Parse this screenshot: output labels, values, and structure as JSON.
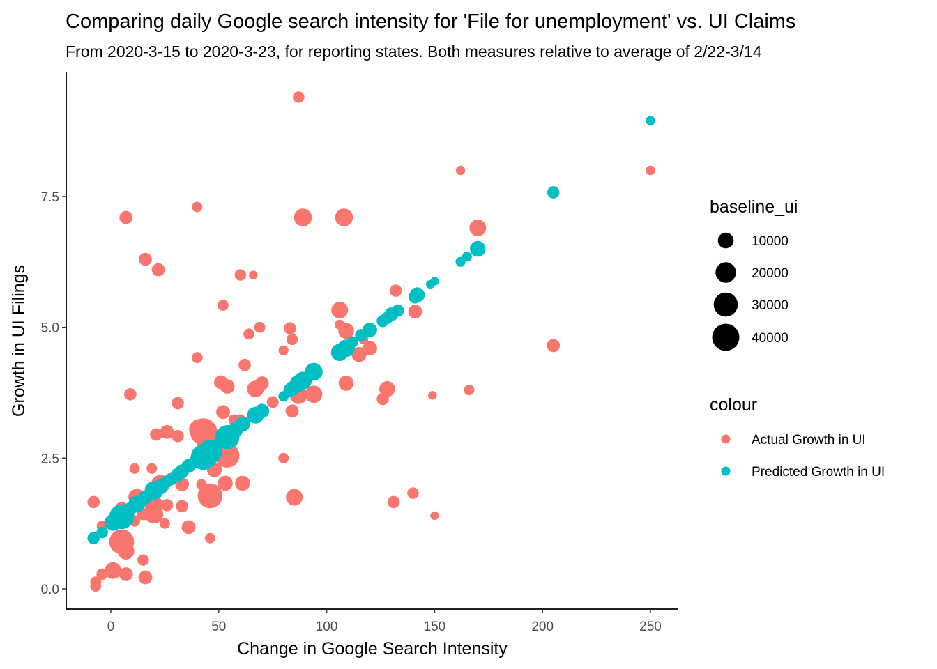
{
  "chart_data": {
    "type": "scatter",
    "title": "Comparing daily Google search intensity for 'File for unemployment' vs. UI Claims",
    "subtitle": "From 2020-3-15 to 2020-3-23, for reporting states. Both measures relative to average of 2/22-3/14",
    "xlabel": "Change in Google Search Intensity",
    "ylabel": "Growth in UI Filings",
    "xlim": [
      -10,
      260
    ],
    "ylim": [
      -0.4,
      9.9
    ],
    "x_ticks": [
      0,
      50,
      100,
      150,
      200,
      250
    ],
    "y_ticks": [
      0.0,
      2.5,
      5.0,
      7.5
    ],
    "x_tick_labels": [
      "0",
      "50",
      "100",
      "150",
      "200",
      "250"
    ],
    "y_tick_labels": [
      "0.0",
      "2.5",
      "5.0",
      "7.5"
    ],
    "grid": false,
    "legend_placement": "right",
    "size_legend": {
      "title": "baseline_ui",
      "values": [
        10000,
        20000,
        30000,
        40000
      ],
      "labels": [
        "10000",
        "20000",
        "30000",
        "40000"
      ]
    },
    "colour_legend": {
      "title": "colour",
      "entries": [
        "Actual Growth in UI",
        "Predicted Growth in UI"
      ]
    },
    "colors": {
      "Actual Growth in UI": "#F8766D",
      "Predicted Growth in UI": "#00BFC4"
    },
    "series": [
      {
        "name": "Actual Growth in UI",
        "points": [
          {
            "x": 87,
            "y": 9.4,
            "baseline_ui": 4000
          },
          {
            "x": 162,
            "y": 8.0,
            "baseline_ui": 2000
          },
          {
            "x": 250,
            "y": 8.0,
            "baseline_ui": 2000
          },
          {
            "x": 40,
            "y": 7.3,
            "baseline_ui": 3000
          },
          {
            "x": 7,
            "y": 7.1,
            "baseline_ui": 6000
          },
          {
            "x": 89,
            "y": 7.1,
            "baseline_ui": 14000
          },
          {
            "x": 108,
            "y": 7.1,
            "baseline_ui": 14000
          },
          {
            "x": 170,
            "y": 6.9,
            "baseline_ui": 12000
          },
          {
            "x": 16,
            "y": 6.3,
            "baseline_ui": 6000
          },
          {
            "x": 22,
            "y": 6.1,
            "baseline_ui": 6000
          },
          {
            "x": 60,
            "y": 6.0,
            "baseline_ui": 4000
          },
          {
            "x": 66,
            "y": 6.0,
            "baseline_ui": 1500
          },
          {
            "x": 132,
            "y": 5.7,
            "baseline_ui": 5000
          },
          {
            "x": 52,
            "y": 5.42,
            "baseline_ui": 3500
          },
          {
            "x": 106,
            "y": 5.33,
            "baseline_ui": 12000
          },
          {
            "x": 141,
            "y": 5.3,
            "baseline_ui": 7000
          },
          {
            "x": 106,
            "y": 5.05,
            "baseline_ui": 2500
          },
          {
            "x": 69,
            "y": 5.0,
            "baseline_ui": 3500
          },
          {
            "x": 83,
            "y": 4.98,
            "baseline_ui": 5000
          },
          {
            "x": 109,
            "y": 4.93,
            "baseline_ui": 10000
          },
          {
            "x": 64,
            "y": 4.87,
            "baseline_ui": 3500
          },
          {
            "x": 84,
            "y": 4.77,
            "baseline_ui": 4000
          },
          {
            "x": 117,
            "y": 4.77,
            "baseline_ui": 2500
          },
          {
            "x": 205,
            "y": 4.65,
            "baseline_ui": 6000
          },
          {
            "x": 120,
            "y": 4.6,
            "baseline_ui": 8000
          },
          {
            "x": 80,
            "y": 4.56,
            "baseline_ui": 2500
          },
          {
            "x": 115,
            "y": 4.48,
            "baseline_ui": 9000
          },
          {
            "x": 40,
            "y": 4.42,
            "baseline_ui": 3500
          },
          {
            "x": 62,
            "y": 4.28,
            "baseline_ui": 5000
          },
          {
            "x": 51,
            "y": 3.95,
            "baseline_ui": 7000
          },
          {
            "x": 70,
            "y": 3.93,
            "baseline_ui": 7000
          },
          {
            "x": 109,
            "y": 3.93,
            "baseline_ui": 9000
          },
          {
            "x": 54,
            "y": 3.87,
            "baseline_ui": 8000
          },
          {
            "x": 67,
            "y": 3.82,
            "baseline_ui": 12000
          },
          {
            "x": 128,
            "y": 3.82,
            "baseline_ui": 10000
          },
          {
            "x": 166,
            "y": 3.8,
            "baseline_ui": 3000
          },
          {
            "x": 9,
            "y": 3.72,
            "baseline_ui": 5000
          },
          {
            "x": 94,
            "y": 3.72,
            "baseline_ui": 13000
          },
          {
            "x": 87,
            "y": 3.7,
            "baseline_ui": 13000
          },
          {
            "x": 149,
            "y": 3.7,
            "baseline_ui": 1500
          },
          {
            "x": 126,
            "y": 3.63,
            "baseline_ui": 5000
          },
          {
            "x": 75,
            "y": 3.57,
            "baseline_ui": 4500
          },
          {
            "x": 31,
            "y": 3.55,
            "baseline_ui": 5000
          },
          {
            "x": 84,
            "y": 3.4,
            "baseline_ui": 6000
          },
          {
            "x": 52,
            "y": 3.38,
            "baseline_ui": 7000
          },
          {
            "x": 57,
            "y": 3.23,
            "baseline_ui": 3500
          },
          {
            "x": 60,
            "y": 3.23,
            "baseline_ui": 3500
          },
          {
            "x": 41,
            "y": 3.05,
            "baseline_ui": 20000
          },
          {
            "x": 43,
            "y": 3.0,
            "baseline_ui": 40000
          },
          {
            "x": 26,
            "y": 3.0,
            "baseline_ui": 7000
          },
          {
            "x": 21,
            "y": 2.95,
            "baseline_ui": 5000
          },
          {
            "x": 31,
            "y": 2.92,
            "baseline_ui": 5000
          },
          {
            "x": 46,
            "y": 2.83,
            "baseline_ui": 38000
          },
          {
            "x": 54,
            "y": 2.55,
            "baseline_ui": 30000
          },
          {
            "x": 80,
            "y": 2.5,
            "baseline_ui": 3000
          },
          {
            "x": 11,
            "y": 2.3,
            "baseline_ui": 3000
          },
          {
            "x": 19,
            "y": 2.3,
            "baseline_ui": 3000
          },
          {
            "x": 48,
            "y": 2.28,
            "baseline_ui": 9000
          },
          {
            "x": 23,
            "y": 2.0,
            "baseline_ui": 16000
          },
          {
            "x": 33,
            "y": 2.0,
            "baseline_ui": 7000
          },
          {
            "x": 42,
            "y": 2.0,
            "baseline_ui": 3000
          },
          {
            "x": 53,
            "y": 2.02,
            "baseline_ui": 9000
          },
          {
            "x": 61,
            "y": 2.02,
            "baseline_ui": 9000
          },
          {
            "x": 46,
            "y": 1.78,
            "baseline_ui": 32000
          },
          {
            "x": 12,
            "y": 1.75,
            "baseline_ui": 12000
          },
          {
            "x": 85,
            "y": 1.75,
            "baseline_ui": 12000
          },
          {
            "x": 140,
            "y": 1.83,
            "baseline_ui": 4000
          },
          {
            "x": -8,
            "y": 1.66,
            "baseline_ui": 5000
          },
          {
            "x": 131,
            "y": 1.66,
            "baseline_ui": 5000
          },
          {
            "x": 20,
            "y": 1.6,
            "baseline_ui": 16000
          },
          {
            "x": 26,
            "y": 1.6,
            "baseline_ui": 5000
          },
          {
            "x": 33,
            "y": 1.58,
            "baseline_ui": 5000
          },
          {
            "x": 5,
            "y": 1.55,
            "baseline_ui": 5000
          },
          {
            "x": 20,
            "y": 1.43,
            "baseline_ui": 16000
          },
          {
            "x": 15,
            "y": 1.43,
            "baseline_ui": 5000
          },
          {
            "x": 11,
            "y": 1.3,
            "baseline_ui": 4000
          },
          {
            "x": 25,
            "y": 1.25,
            "baseline_ui": 3000
          },
          {
            "x": 150,
            "y": 1.4,
            "baseline_ui": 1500
          },
          {
            "x": -4,
            "y": 1.2,
            "baseline_ui": 3500
          },
          {
            "x": 36,
            "y": 1.18,
            "baseline_ui": 7000
          },
          {
            "x": 46,
            "y": 0.97,
            "baseline_ui": 3000
          },
          {
            "x": 5,
            "y": 0.9,
            "baseline_ui": 32000
          },
          {
            "x": 7,
            "y": 0.72,
            "baseline_ui": 12000
          },
          {
            "x": 15,
            "y": 0.55,
            "baseline_ui": 4000
          },
          {
            "x": 1,
            "y": 0.35,
            "baseline_ui": 12000
          },
          {
            "x": -4,
            "y": 0.28,
            "baseline_ui": 4000
          },
          {
            "x": 7,
            "y": 0.28,
            "baseline_ui": 7000
          },
          {
            "x": 16,
            "y": 0.22,
            "baseline_ui": 7000
          },
          {
            "x": -7,
            "y": 0.13,
            "baseline_ui": 3500
          },
          {
            "x": -7,
            "y": 0.05,
            "baseline_ui": 3500
          }
        ]
      },
      {
        "name": "Predicted Growth in UI",
        "points": [
          {
            "x": 250,
            "y": 8.95,
            "baseline_ui": 2000
          },
          {
            "x": 205,
            "y": 7.58,
            "baseline_ui": 5000
          },
          {
            "x": 170,
            "y": 6.5,
            "baseline_ui": 10000
          },
          {
            "x": 165,
            "y": 6.35,
            "baseline_ui": 2500
          },
          {
            "x": 162,
            "y": 6.25,
            "baseline_ui": 2500
          },
          {
            "x": 150,
            "y": 5.88,
            "baseline_ui": 1500
          },
          {
            "x": 148,
            "y": 5.82,
            "baseline_ui": 1500
          },
          {
            "x": 142,
            "y": 5.62,
            "baseline_ui": 9000
          },
          {
            "x": 141,
            "y": 5.58,
            "baseline_ui": 6000
          },
          {
            "x": 133,
            "y": 5.32,
            "baseline_ui": 5000
          },
          {
            "x": 130,
            "y": 5.25,
            "baseline_ui": 7000
          },
          {
            "x": 128,
            "y": 5.18,
            "baseline_ui": 5000
          },
          {
            "x": 126,
            "y": 5.12,
            "baseline_ui": 5000
          },
          {
            "x": 120,
            "y": 4.95,
            "baseline_ui": 8000
          },
          {
            "x": 116,
            "y": 4.85,
            "baseline_ui": 5000
          },
          {
            "x": 112,
            "y": 4.72,
            "baseline_ui": 4000
          },
          {
            "x": 109,
            "y": 4.6,
            "baseline_ui": 13000
          },
          {
            "x": 108,
            "y": 4.58,
            "baseline_ui": 10000
          },
          {
            "x": 106,
            "y": 4.52,
            "baseline_ui": 13000
          },
          {
            "x": 94,
            "y": 4.15,
            "baseline_ui": 14000
          },
          {
            "x": 89,
            "y": 3.98,
            "baseline_ui": 14000
          },
          {
            "x": 87,
            "y": 3.93,
            "baseline_ui": 13000
          },
          {
            "x": 84,
            "y": 3.83,
            "baseline_ui": 8000
          },
          {
            "x": 83,
            "y": 3.8,
            "baseline_ui": 6000
          },
          {
            "x": 80,
            "y": 3.68,
            "baseline_ui": 3000
          },
          {
            "x": 70,
            "y": 3.4,
            "baseline_ui": 8000
          },
          {
            "x": 67,
            "y": 3.32,
            "baseline_ui": 12000
          },
          {
            "x": 61,
            "y": 3.15,
            "baseline_ui": 9000
          },
          {
            "x": 58,
            "y": 3.05,
            "baseline_ui": 9000
          },
          {
            "x": 54,
            "y": 2.9,
            "baseline_ui": 30000
          },
          {
            "x": 52,
            "y": 2.83,
            "baseline_ui": 9000
          },
          {
            "x": 48,
            "y": 2.7,
            "baseline_ui": 10000
          },
          {
            "x": 46,
            "y": 2.62,
            "baseline_ui": 30000
          },
          {
            "x": 43,
            "y": 2.52,
            "baseline_ui": 35000
          },
          {
            "x": 40,
            "y": 2.45,
            "baseline_ui": 9000
          },
          {
            "x": 36,
            "y": 2.35,
            "baseline_ui": 7000
          },
          {
            "x": 33,
            "y": 2.25,
            "baseline_ui": 7000
          },
          {
            "x": 31,
            "y": 2.18,
            "baseline_ui": 7000
          },
          {
            "x": 28,
            "y": 2.1,
            "baseline_ui": 5000
          },
          {
            "x": 26,
            "y": 2.05,
            "baseline_ui": 5000
          },
          {
            "x": 23,
            "y": 1.95,
            "baseline_ui": 9000
          },
          {
            "x": 20,
            "y": 1.88,
            "baseline_ui": 16000
          },
          {
            "x": 16,
            "y": 1.75,
            "baseline_ui": 7000
          },
          {
            "x": 12,
            "y": 1.62,
            "baseline_ui": 12000
          },
          {
            "x": 9,
            "y": 1.53,
            "baseline_ui": 6000
          },
          {
            "x": 7,
            "y": 1.45,
            "baseline_ui": 12000
          },
          {
            "x": 5,
            "y": 1.38,
            "baseline_ui": 32000
          },
          {
            "x": 1,
            "y": 1.27,
            "baseline_ui": 12000
          },
          {
            "x": -4,
            "y": 1.08,
            "baseline_ui": 4000
          },
          {
            "x": -8,
            "y": 0.97,
            "baseline_ui": 5000
          }
        ]
      }
    ]
  }
}
